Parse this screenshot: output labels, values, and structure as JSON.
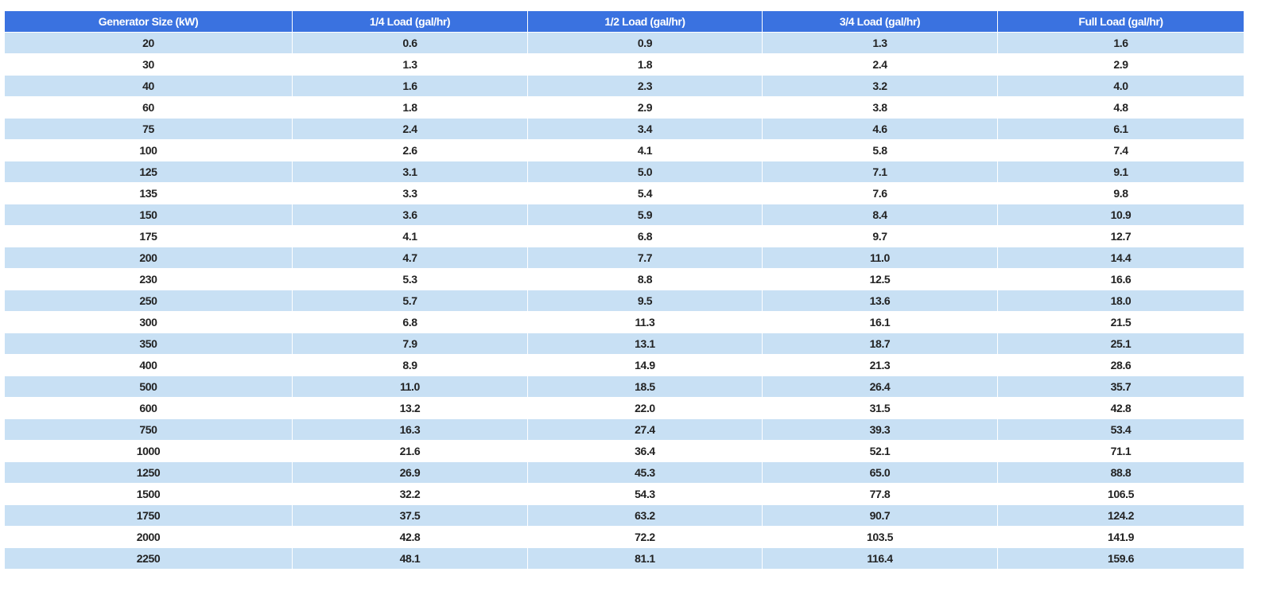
{
  "table": {
    "header": [
      "Generator Size (kW)",
      "1/4 Load (gal/hr)",
      "1/2 Load (gal/hr)",
      "3/4 Load (gal/hr)",
      "Full Load (gal/hr)"
    ],
    "rows": [
      [
        "20",
        "0.6",
        "0.9",
        "1.3",
        "1.6"
      ],
      [
        "30",
        "1.3",
        "1.8",
        "2.4",
        "2.9"
      ],
      [
        "40",
        "1.6",
        "2.3",
        "3.2",
        "4.0"
      ],
      [
        "60",
        "1.8",
        "2.9",
        "3.8",
        "4.8"
      ],
      [
        "75",
        "2.4",
        "3.4",
        "4.6",
        "6.1"
      ],
      [
        "100",
        "2.6",
        "4.1",
        "5.8",
        "7.4"
      ],
      [
        "125",
        "3.1",
        "5.0",
        "7.1",
        "9.1"
      ],
      [
        "135",
        "3.3",
        "5.4",
        "7.6",
        "9.8"
      ],
      [
        "150",
        "3.6",
        "5.9",
        "8.4",
        "10.9"
      ],
      [
        "175",
        "4.1",
        "6.8",
        "9.7",
        "12.7"
      ],
      [
        "200",
        "4.7",
        "7.7",
        "11.0",
        "14.4"
      ],
      [
        "230",
        "5.3",
        "8.8",
        "12.5",
        "16.6"
      ],
      [
        "250",
        "5.7",
        "9.5",
        "13.6",
        "18.0"
      ],
      [
        "300",
        "6.8",
        "11.3",
        "16.1",
        "21.5"
      ],
      [
        "350",
        "7.9",
        "13.1",
        "18.7",
        "25.1"
      ],
      [
        "400",
        "8.9",
        "14.9",
        "21.3",
        "28.6"
      ],
      [
        "500",
        "11.0",
        "18.5",
        "26.4",
        "35.7"
      ],
      [
        "600",
        "13.2",
        "22.0",
        "31.5",
        "42.8"
      ],
      [
        "750",
        "16.3",
        "27.4",
        "39.3",
        "53.4"
      ],
      [
        "1000",
        "21.6",
        "36.4",
        "52.1",
        "71.1"
      ],
      [
        "1250",
        "26.9",
        "45.3",
        "65.0",
        "88.8"
      ],
      [
        "1500",
        "32.2",
        "54.3",
        "77.8",
        "106.5"
      ],
      [
        "1750",
        "37.5",
        "63.2",
        "90.7",
        "124.2"
      ],
      [
        "2000",
        "42.8",
        "72.2",
        "103.5",
        "141.9"
      ],
      [
        "2250",
        "48.1",
        "81.1",
        "116.4",
        "159.6"
      ]
    ]
  }
}
